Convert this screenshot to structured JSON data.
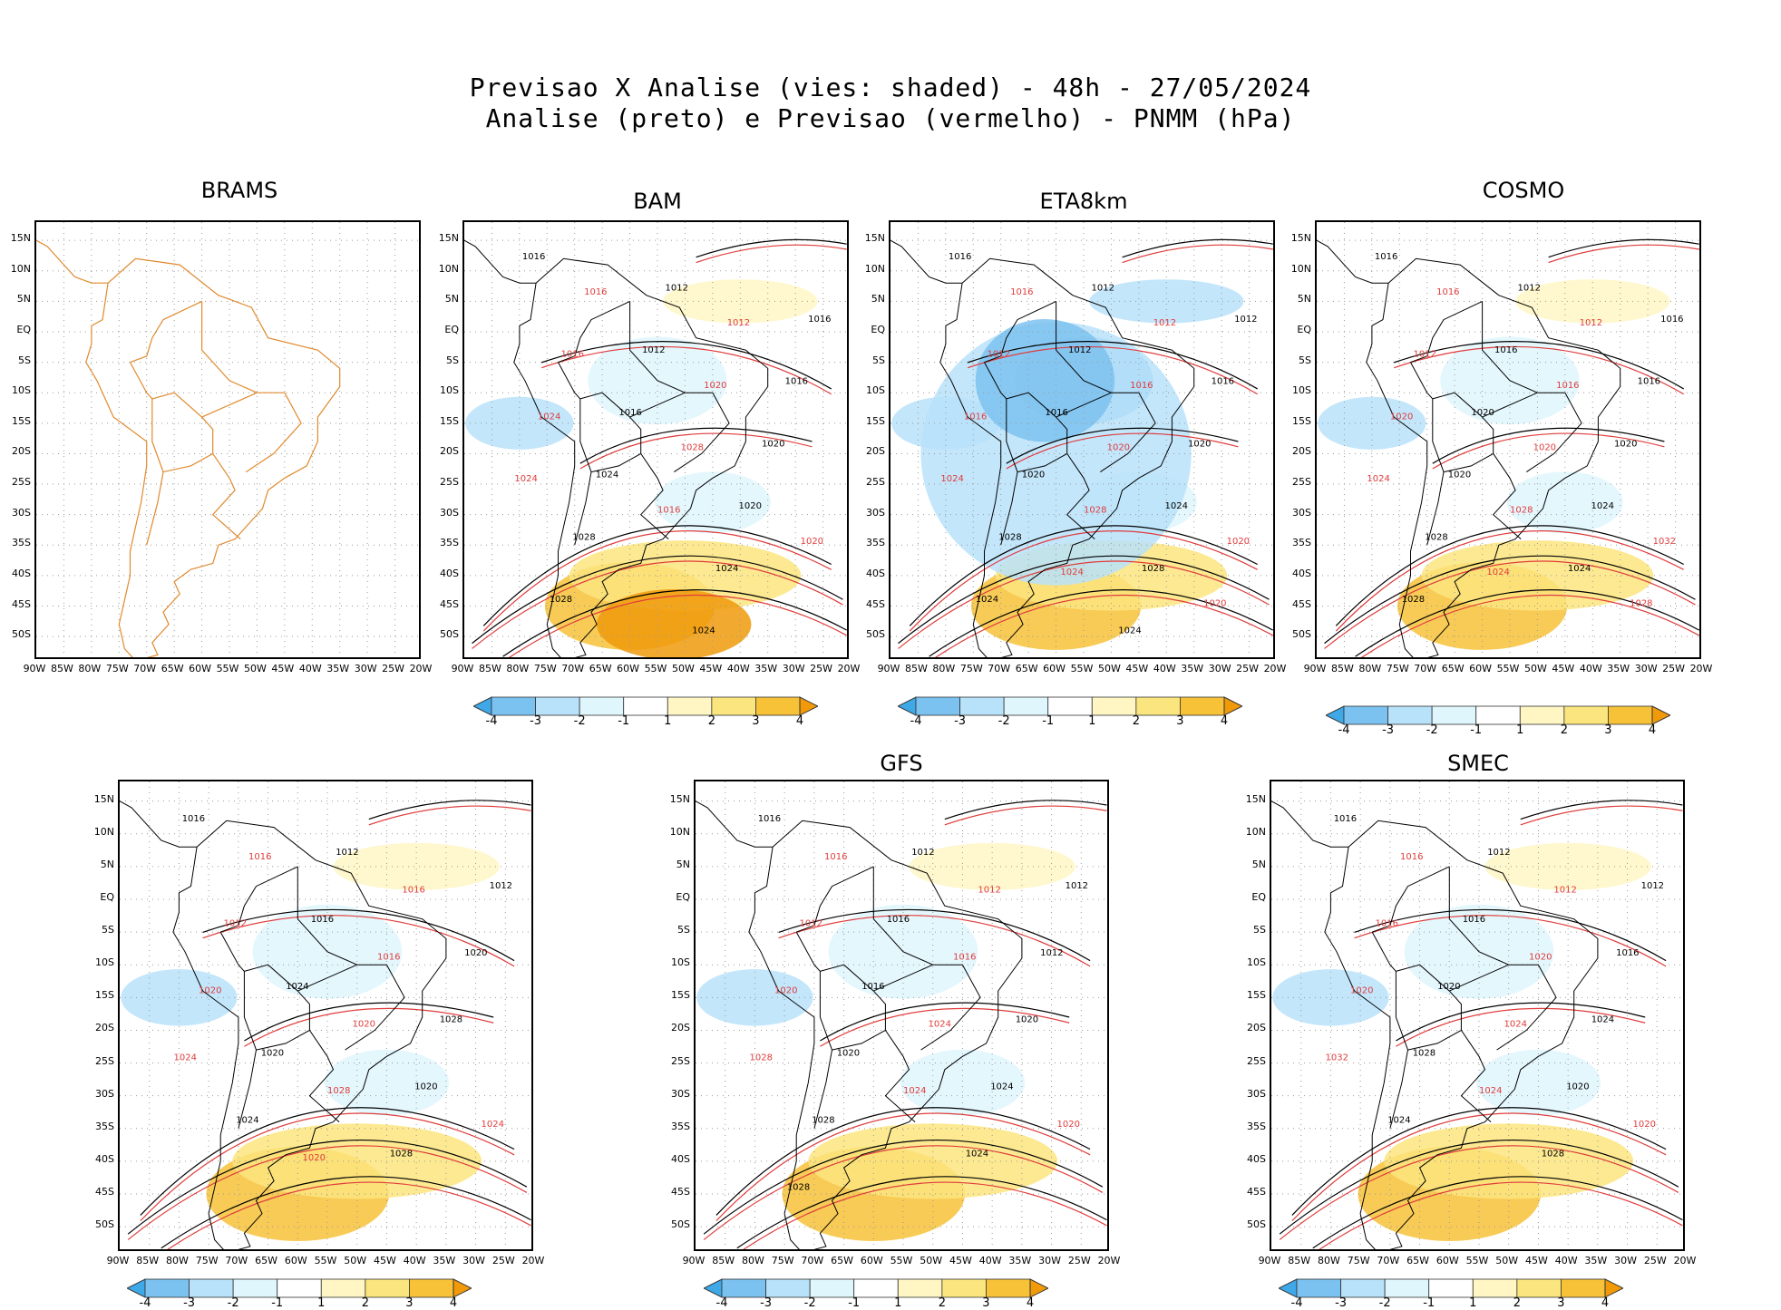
{
  "header": {
    "line1": "Previsao X Analise (vies: shaded) - 48h - 27/05/2024",
    "line2": "Analise (preto) e Previsao (vermelho) - PNMM (hPa)"
  },
  "axes": {
    "lat_labels": [
      "15N",
      "10N",
      "5N",
      "EQ",
      "5S",
      "10S",
      "15S",
      "20S",
      "25S",
      "30S",
      "35S",
      "40S",
      "45S",
      "50S"
    ],
    "lon_labels": [
      "90W",
      "85W",
      "80W",
      "75W",
      "70W",
      "65W",
      "60W",
      "55W",
      "50W",
      "45W",
      "40W",
      "35W",
      "30W",
      "25W",
      "20W"
    ]
  },
  "colorbar": {
    "labels": [
      "-4",
      "-3",
      "-2",
      "-1",
      "1",
      "2",
      "3",
      "4"
    ],
    "colors": [
      "#3fa9e8",
      "#7cc2f0",
      "#b8e2fa",
      "#dff6fd",
      "#ffffff",
      "#fff6c4",
      "#fbe57e",
      "#f7c238",
      "#f09a0a"
    ]
  },
  "colors": {
    "analysis": "#000000",
    "forecast": "#e03c3c",
    "coastline_brams": "#e08a2e",
    "grid": "#9a9a9a"
  },
  "panels": [
    {
      "id": "brams",
      "title": "BRAMS",
      "contours_black": [],
      "contours_red": []
    },
    {
      "id": "bam",
      "title": "BAM",
      "contours_black": [
        "1016",
        "1012",
        "1016",
        "1012",
        "1016",
        "1016",
        "1020",
        "1024",
        "1020",
        "1028",
        "1024",
        "1028",
        "1024"
      ],
      "contours_red": [
        "1016",
        "1012",
        "1016",
        "1020",
        "1024",
        "1028",
        "1024",
        "1016",
        "1020"
      ]
    },
    {
      "id": "eta8km",
      "title": "ETA8km",
      "contours_black": [
        "1016",
        "1012",
        "1012",
        "1012",
        "1016",
        "1016",
        "1020",
        "1020",
        "1024",
        "1028",
        "1028",
        "1024",
        "1024"
      ],
      "contours_red": [
        "1016",
        "1012",
        "1012",
        "1016",
        "1016",
        "1020",
        "1024",
        "1028",
        "1020",
        "1024",
        "1020"
      ]
    },
    {
      "id": "cosmo",
      "title": "COSMO",
      "contours_black": [
        "1016",
        "1012",
        "1016",
        "1016",
        "1016",
        "1020",
        "1020",
        "1020",
        "1024",
        "1028",
        "1024",
        "1028"
      ],
      "contours_red": [
        "1016",
        "1012",
        "1012",
        "1016",
        "1020",
        "1020",
        "1024",
        "1028",
        "1032",
        "1024",
        "1028"
      ]
    },
    {
      "id": "model5",
      "title": "",
      "contours_black": [
        "1016",
        "1012",
        "1012",
        "1016",
        "1020",
        "1024",
        "1028",
        "1020",
        "1020",
        "1024",
        "1028"
      ],
      "contours_red": [
        "1016",
        "1016",
        "1012",
        "1016",
        "1020",
        "1020",
        "1024",
        "1028",
        "1024",
        "1020"
      ]
    },
    {
      "id": "gfs",
      "title": "GFS",
      "contours_black": [
        "1016",
        "1012",
        "1012",
        "1016",
        "1012",
        "1016",
        "1020",
        "1020",
        "1024",
        "1028",
        "1024",
        "1028"
      ],
      "contours_red": [
        "1016",
        "1012",
        "1012",
        "1016",
        "1020",
        "1024",
        "1028",
        "1024",
        "1020"
      ]
    },
    {
      "id": "smec",
      "title": "SMEC",
      "contours_black": [
        "1016",
        "1012",
        "1012",
        "1016",
        "1016",
        "1020",
        "1024",
        "1028",
        "1020",
        "1024",
        "1028"
      ],
      "contours_red": [
        "1016",
        "1012",
        "1016",
        "1020",
        "1020",
        "1024",
        "1032",
        "1024",
        "1020"
      ]
    }
  ]
}
